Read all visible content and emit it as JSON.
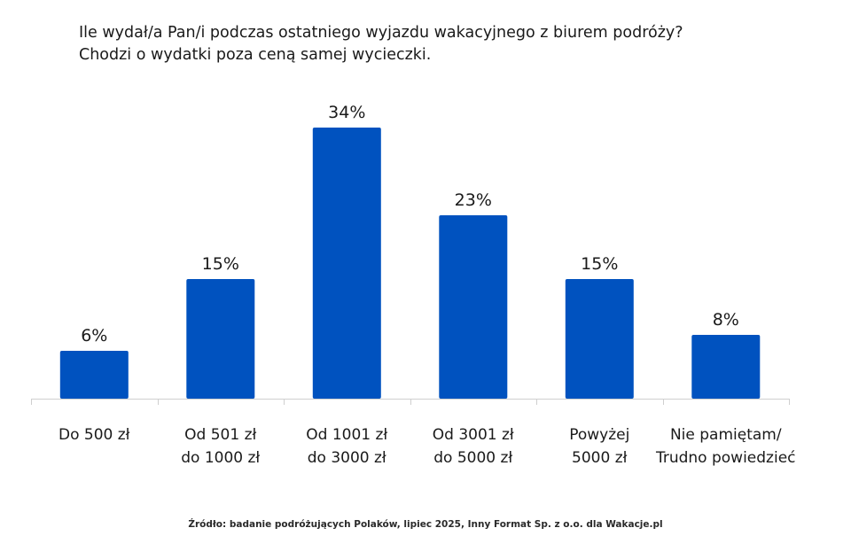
{
  "title": {
    "line1": "Ile wydał/a Pan/i podczas ostatniego wyjazdu wakacyjnego z biurem podróży?",
    "line2": "Chodzi o wydatki poza ceną samej wycieczki."
  },
  "source": "Źródło: badanie podróżujących Polaków, lipiec 2025, Inny Format Sp. z o.o. dla Wakacje.pl",
  "colors": {
    "bar": "#0052bf",
    "axis": "#cfcfcf",
    "text": "#1a1a1a"
  },
  "chart_data": {
    "type": "bar",
    "categories": [
      [
        "Do 500 zł"
      ],
      [
        "Od 501 zł",
        "do 1000 zł"
      ],
      [
        "Od 1001 zł",
        "do 3000 zł"
      ],
      [
        "Od 3001 zł",
        "do 5000 zł"
      ],
      [
        "Powyżej",
        "5000 zł"
      ],
      [
        "Nie pamiętam/",
        "Trudno powiedzieć"
      ]
    ],
    "values": [
      6,
      15,
      34,
      23,
      15,
      8
    ],
    "value_labels": [
      "6%",
      "15%",
      "34%",
      "23%",
      "15%",
      "8%"
    ],
    "unit": "%",
    "grid": false,
    "legend": "none"
  }
}
